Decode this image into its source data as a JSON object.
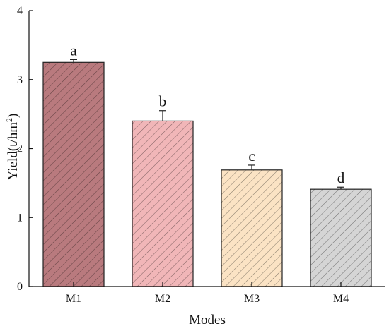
{
  "chart_data": {
    "type": "bar",
    "categories": [
      "M1",
      "M2",
      "M3",
      "M4"
    ],
    "values": [
      3.25,
      2.4,
      1.69,
      1.41
    ],
    "errors": [
      0.04,
      0.15,
      0.07,
      0.03
    ],
    "significance": [
      "a",
      "b",
      "c",
      "d"
    ],
    "colors": [
      "#b97a7e",
      "#f1b6b8",
      "#fbe3c4",
      "#d5d5d5"
    ],
    "hatch": "diagonal",
    "xlabel": "Modes",
    "ylabel_main": "Yield(t/hm",
    "ylabel_sup": "2",
    "ylabel_end": ")",
    "ylim": [
      0,
      4
    ],
    "yticks": [
      "0",
      "1",
      "2",
      "3",
      "4"
    ],
    "grid": false
  }
}
